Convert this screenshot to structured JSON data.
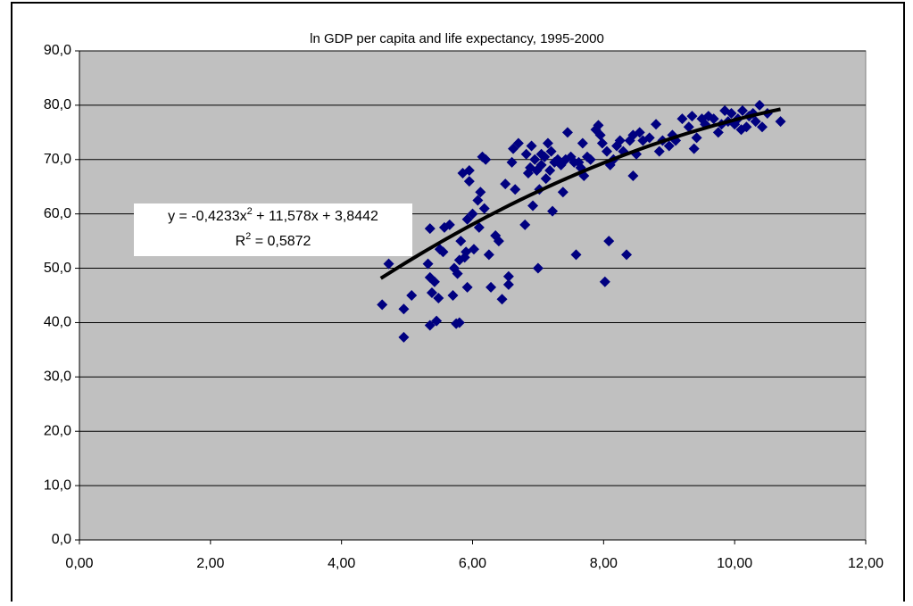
{
  "chart_data": {
    "type": "scatter",
    "title": "ln GDP per capita and life expectancy, 1995-2000",
    "color": "#000080",
    "grid": true,
    "xlim": [
      0,
      12
    ],
    "ylim": [
      0,
      90
    ],
    "xticks": [
      {
        "value": 0,
        "label": "0,00"
      },
      {
        "value": 2,
        "label": "2,00"
      },
      {
        "value": 4,
        "label": "4,00"
      },
      {
        "value": 6,
        "label": "6,00"
      },
      {
        "value": 8,
        "label": "8,00"
      },
      {
        "value": 10,
        "label": "10,00"
      },
      {
        "value": 12,
        "label": "12,00"
      }
    ],
    "yticks": [
      {
        "value": 0,
        "label": "0,0"
      },
      {
        "value": 10,
        "label": "10,0"
      },
      {
        "value": 20,
        "label": "20,0"
      },
      {
        "value": 30,
        "label": "30,0"
      },
      {
        "value": 40,
        "label": "40,0"
      },
      {
        "value": 50,
        "label": "50,0"
      },
      {
        "value": 60,
        "label": "60,0"
      },
      {
        "value": 70,
        "label": "70,0"
      },
      {
        "value": 80,
        "label": "80,0"
      },
      {
        "value": 90,
        "label": "90,0"
      }
    ],
    "x": [
      4.62,
      4.72,
      4.95,
      4.95,
      5.07,
      5.32,
      5.35,
      5.35,
      5.38,
      5.35,
      5.42,
      5.45,
      5.48,
      5.5,
      5.55,
      5.57,
      5.65,
      5.7,
      5.72,
      5.75,
      5.77,
      5.8,
      5.8,
      5.82,
      5.85,
      5.88,
      5.9,
      5.92,
      5.92,
      5.95,
      5.95,
      6.0,
      6.02,
      6.08,
      6.1,
      6.12,
      6.15,
      6.18,
      6.2,
      6.25,
      6.28,
      6.35,
      6.4,
      6.45,
      6.5,
      6.55,
      6.55,
      6.6,
      6.62,
      6.65,
      6.7,
      6.8,
      6.82,
      6.85,
      6.88,
      6.9,
      6.92,
      6.95,
      6.98,
      7.0,
      7.02,
      7.05,
      7.05,
      7.1,
      7.12,
      7.15,
      7.18,
      7.2,
      7.22,
      7.25,
      7.3,
      7.35,
      7.38,
      7.42,
      7.45,
      7.5,
      7.55,
      7.58,
      7.62,
      7.65,
      7.68,
      7.7,
      7.75,
      7.8,
      7.88,
      7.92,
      7.95,
      7.98,
      8.02,
      8.05,
      8.08,
      8.1,
      8.15,
      8.2,
      8.25,
      8.3,
      8.35,
      8.4,
      8.45,
      8.45,
      8.5,
      8.55,
      8.6,
      8.7,
      8.8,
      8.85,
      8.9,
      9.0,
      9.05,
      9.1,
      9.2,
      9.3,
      9.35,
      9.38,
      9.42,
      9.5,
      9.55,
      9.6,
      9.68,
      9.75,
      9.8,
      9.85,
      9.9,
      9.95,
      10.0,
      10.05,
      10.1,
      10.12,
      10.18,
      10.22,
      10.28,
      10.32,
      10.38,
      10.42,
      10.5,
      10.7
    ],
    "values": [
      43.3,
      50.8,
      37.3,
      42.5,
      45.0,
      50.8,
      57.3,
      48.3,
      45.5,
      39.5,
      47.5,
      40.3,
      44.5,
      53.5,
      53.0,
      57.5,
      58.0,
      45.0,
      50.0,
      39.8,
      49.0,
      40.0,
      51.5,
      55.0,
      67.5,
      52.0,
      53.0,
      46.5,
      59.0,
      66.0,
      68.0,
      60.0,
      53.5,
      62.5,
      57.5,
      64.0,
      70.5,
      61.0,
      70.0,
      52.5,
      46.5,
      56.0,
      55.0,
      44.3,
      65.5,
      48.5,
      47.0,
      69.5,
      72.0,
      64.5,
      73.0,
      58.0,
      71.0,
      67.5,
      68.5,
      72.5,
      61.5,
      70.0,
      68.0,
      50.0,
      64.5,
      71.0,
      69.0,
      70.5,
      66.5,
      73.0,
      68.0,
      71.5,
      60.5,
      69.5,
      70.0,
      69.0,
      64.0,
      70.0,
      75.0,
      70.5,
      69.5,
      52.5,
      69.5,
      68.5,
      73.0,
      67.0,
      70.5,
      70.0,
      75.5,
      76.3,
      74.5,
      73.0,
      47.5,
      71.5,
      55.0,
      69.0,
      70.0,
      72.5,
      73.5,
      71.5,
      52.5,
      73.5,
      67.0,
      74.5,
      71.0,
      75.0,
      73.5,
      74.0,
      76.5,
      71.5,
      73.5,
      72.5,
      74.5,
      73.5,
      77.5,
      76.0,
      78.0,
      72.0,
      74.0,
      77.5,
      76.5,
      78.0,
      77.5,
      75.0,
      76.5,
      79.0,
      77.0,
      78.5,
      76.5,
      77.5,
      75.5,
      79.0,
      76.0,
      78.0,
      78.5,
      77.0,
      80.0,
      76.0,
      78.5,
      77.0
    ],
    "trendline": {
      "type": "polynomial",
      "coefficients": [
        -0.4233,
        11.578,
        3.8442
      ],
      "xrange": [
        4.6,
        10.7
      ],
      "color": "#000000",
      "equation": [
        "y = -0,4233x",
        "2",
        " + 11,578x + 3,8442"
      ],
      "r_squared": [
        "R",
        "2",
        " = 0,5872"
      ]
    }
  }
}
